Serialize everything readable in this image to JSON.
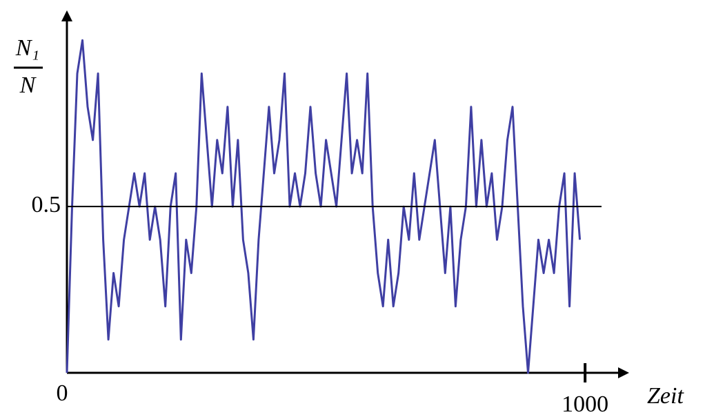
{
  "chart_data": {
    "type": "line",
    "ylabel": {
      "numerator": "N₁",
      "denominator": "N"
    },
    "xlabel": "Zeit",
    "x": [
      0,
      10,
      20,
      30,
      40,
      50,
      60,
      70,
      80,
      90,
      100,
      110,
      120,
      130,
      140,
      150,
      160,
      170,
      180,
      190,
      200,
      210,
      220,
      230,
      240,
      250,
      260,
      270,
      280,
      290,
      300,
      310,
      320,
      330,
      340,
      350,
      360,
      370,
      380,
      390,
      400,
      410,
      420,
      430,
      440,
      450,
      460,
      470,
      480,
      490,
      500,
      510,
      520,
      530,
      540,
      550,
      560,
      570,
      580,
      590,
      600,
      610,
      620,
      630,
      640,
      650,
      660,
      670,
      680,
      690,
      700,
      710,
      720,
      730,
      740,
      750,
      760,
      770,
      780,
      790,
      800,
      810,
      820,
      830,
      840,
      850,
      860,
      870,
      880,
      890,
      900,
      910,
      920,
      930,
      940,
      950,
      960,
      970,
      980,
      990
    ],
    "series": [
      {
        "color": "#3f3fa3",
        "values": [
          0,
          0.5,
          0.9,
          1.0,
          0.8,
          0.7,
          0.9,
          0.4,
          0.1,
          0.3,
          0.2,
          0.4,
          0.5,
          0.6,
          0.5,
          0.6,
          0.4,
          0.5,
          0.4,
          0.2,
          0.5,
          0.6,
          0.1,
          0.4,
          0.3,
          0.5,
          0.9,
          0.7,
          0.5,
          0.7,
          0.6,
          0.8,
          0.5,
          0.7,
          0.4,
          0.3,
          0.1,
          0.4,
          0.6,
          0.8,
          0.6,
          0.7,
          0.9,
          0.5,
          0.6,
          0.5,
          0.6,
          0.8,
          0.6,
          0.5,
          0.7,
          0.6,
          0.5,
          0.7,
          0.9,
          0.6,
          0.7,
          0.6,
          0.9,
          0.5,
          0.3,
          0.2,
          0.4,
          0.2,
          0.3,
          0.5,
          0.4,
          0.6,
          0.4,
          0.5,
          0.6,
          0.7,
          0.5,
          0.3,
          0.5,
          0.2,
          0.4,
          0.5,
          0.8,
          0.5,
          0.7,
          0.5,
          0.6,
          0.4,
          0.5,
          0.7,
          0.8,
          0.5,
          0.2,
          0.0,
          0.2,
          0.4,
          0.3,
          0.4,
          0.3,
          0.5,
          0.6,
          0.2,
          0.6,
          0.4
        ]
      }
    ],
    "hline": 0.5,
    "xlim": [
      0,
      1085
    ],
    "ylim": [
      0,
      1.09
    ],
    "xticks": [
      0,
      1000
    ],
    "yticks": [
      0.5
    ]
  }
}
